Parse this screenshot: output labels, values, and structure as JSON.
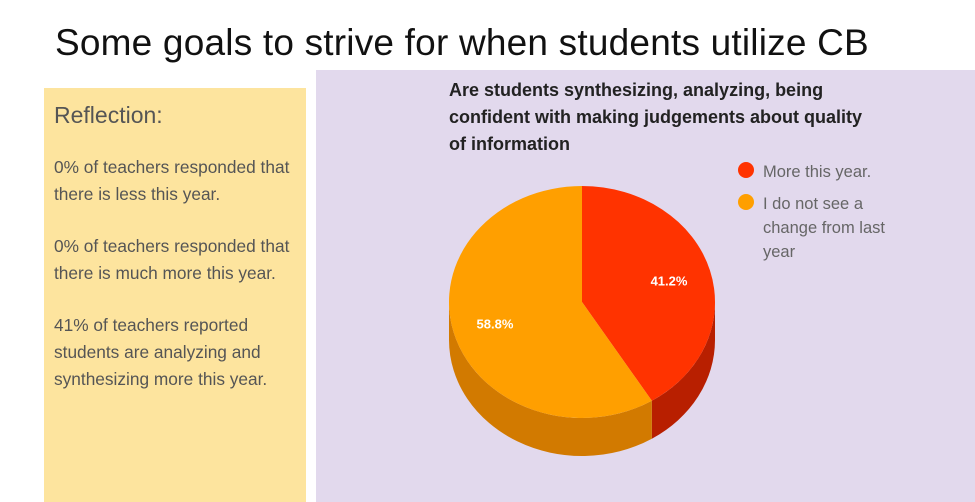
{
  "slide": {
    "title": "Some goals to strive for when students utilize CB"
  },
  "reflection": {
    "heading": "Reflection:",
    "items": [
      "0% of teachers responded that there is less this year.",
      "0% of teachers responded that there is much more this year.",
      "41% of teachers reported students are analyzing and synthesizing more this year."
    ]
  },
  "chart_data": {
    "type": "pie",
    "style": "3d",
    "title": "Are students synthesizing, analyzing, being confident with making judgements about quality of information",
    "legend_position": "right",
    "slices": [
      {
        "label": "More this year.",
        "value": 41.2,
        "display": "41.2%",
        "color": "#ff3300",
        "side_color": "#b81f00"
      },
      {
        "label": "I do not see a change from last year",
        "value": 58.8,
        "display": "58.8%",
        "color": "#ff9f00",
        "side_color": "#d27a00"
      }
    ]
  }
}
